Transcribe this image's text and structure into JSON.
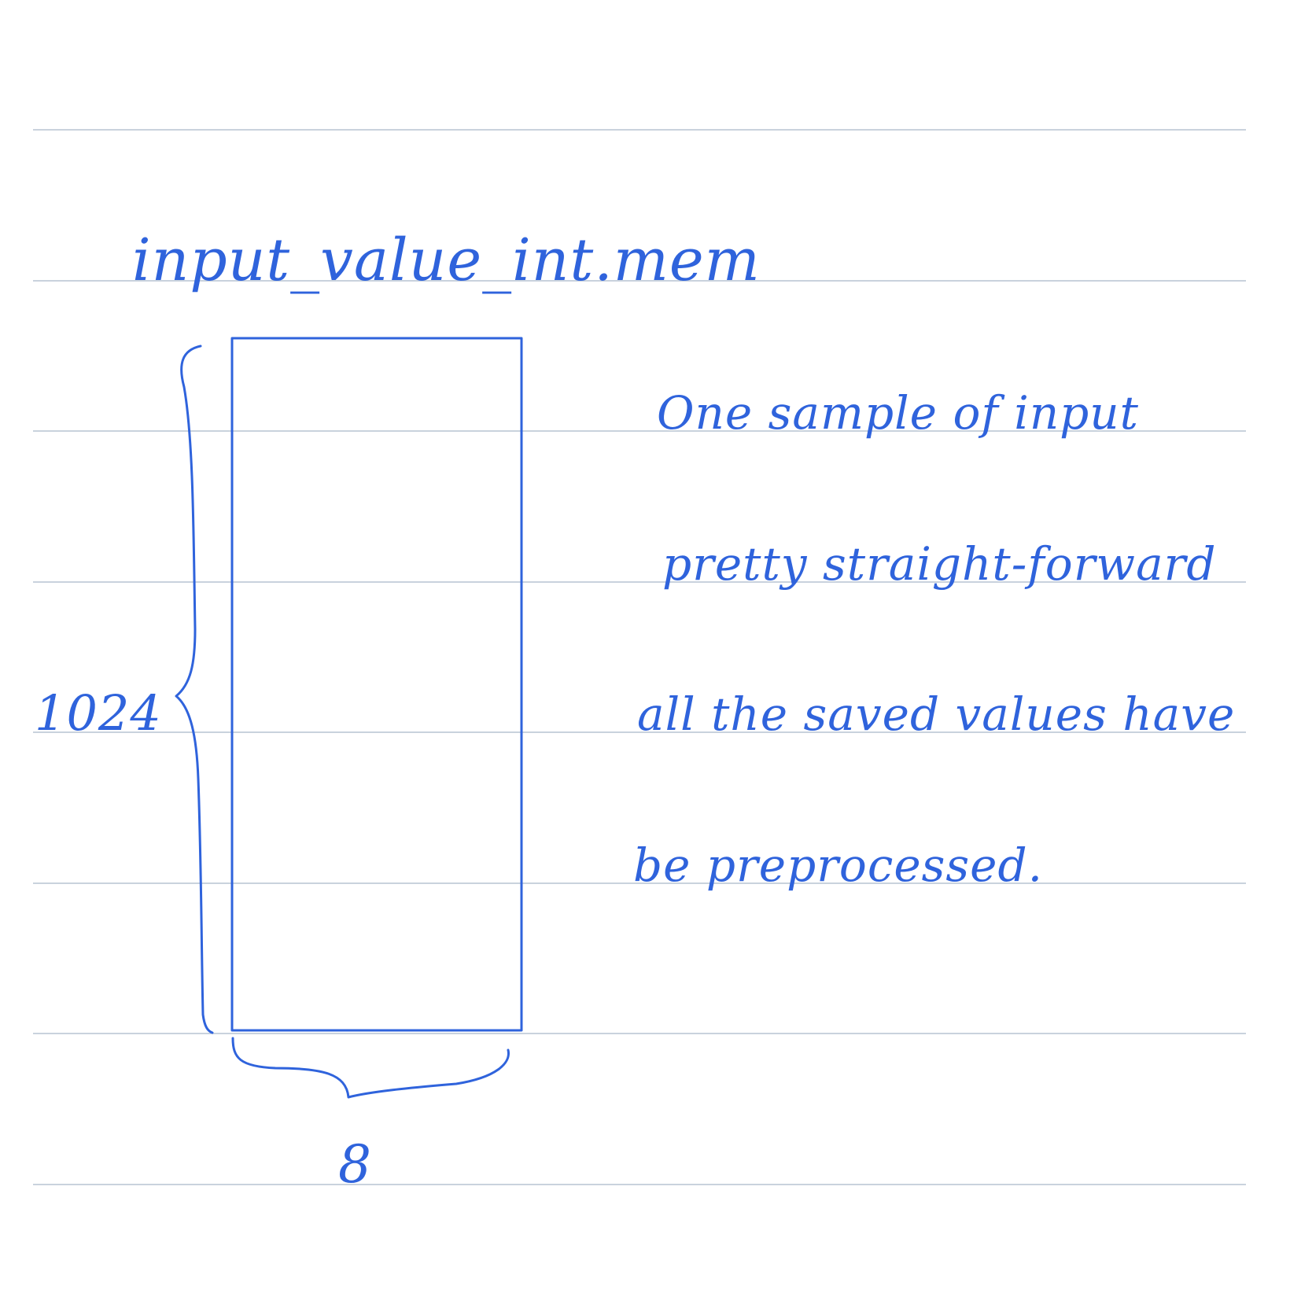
{
  "diagram": {
    "title": "input_value_int.mem",
    "height_label": "1024",
    "width_label": "8",
    "notes": [
      "One sample of input",
      "pretty straight-forward",
      "all the saved values have",
      "be preprocessed."
    ],
    "ink_color": "#2f63dc",
    "rule_color": "#c9d2dd"
  }
}
